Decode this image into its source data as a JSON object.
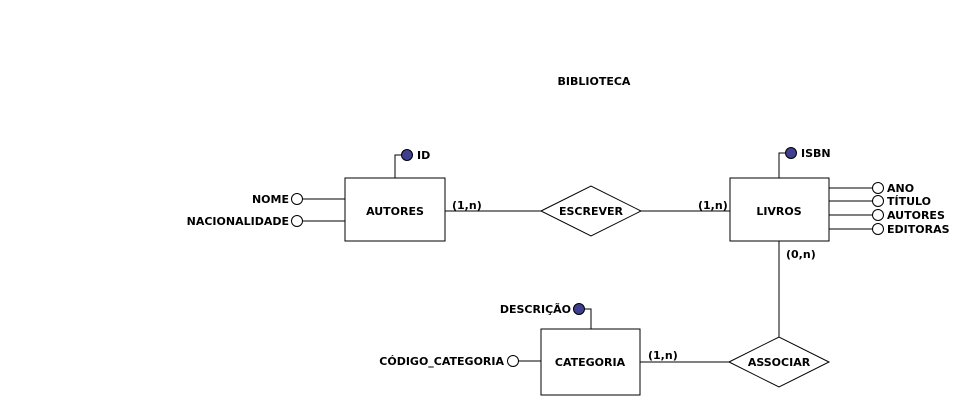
{
  "title": "BIBLIOTECA",
  "colors": {
    "key_fill": "#3f3f8f",
    "attr_fill": "#ffffff",
    "line": "#000000"
  },
  "entities": {
    "autores": {
      "label": "AUTORES",
      "key": "ID",
      "attributes": [
        "NOME",
        "NACIONALIDADE"
      ]
    },
    "livros": {
      "label": "LIVROS",
      "key": "ISBN",
      "attributes": [
        "ANO",
        "TÍTULO",
        "AUTORES",
        "EDITORAS"
      ]
    },
    "categoria": {
      "label": "CATEGORIA",
      "key": "DESCRIÇÃO",
      "attributes": [
        "CÓDIGO_CATEGORIA"
      ]
    }
  },
  "relationships": {
    "escrever": {
      "label": "ESCREVER",
      "card_autores": "(1,n)",
      "card_livros": "(1,n)"
    },
    "associar": {
      "label": "ASSOCIAR",
      "card_livros": "(0,n)",
      "card_categoria": "(1,n)"
    }
  }
}
